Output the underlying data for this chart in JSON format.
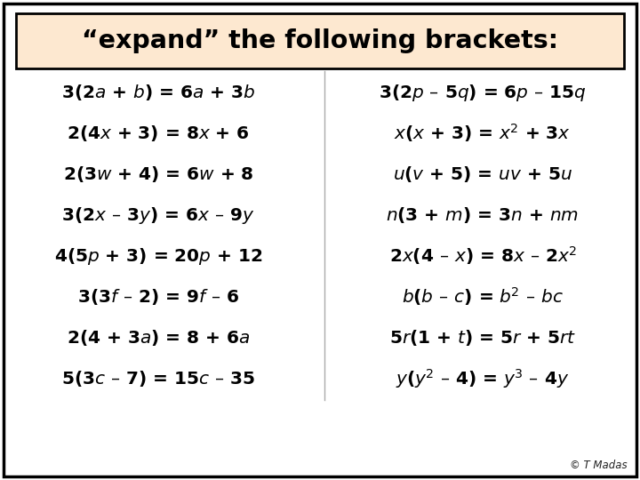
{
  "title": "“expand” the following brackets:",
  "title_bg": "#fde8d0",
  "bg_color": "#ffffff",
  "border_color": "#000000",
  "text_color": "#000000",
  "footer": "© T Madas",
  "left_eqs": [
    "3(2$\\it{a}$ + $\\it{b}$) = 6$\\it{a}$ + 3$\\it{b}$",
    "2(4$\\it{x}$ + 3) = 8$\\it{x}$ + 6",
    "2(3$\\it{w}$ + 4) = 6$\\it{w}$ + 8",
    "3(2$\\it{x}$ – 3$\\it{y}$) = 6$\\it{x}$ – 9$\\it{y}$",
    "4(5$\\it{p}$ + 3) = 20$\\it{p}$ + 12",
    "3(3$\\it{f}$ – 2) = 9$\\it{f}$ – 6",
    "2(4 + 3$\\it{a}$) = 8 + 6$\\it{a}$",
    "5(3$\\it{c}$ – 7) = 15$\\it{c}$ – 35"
  ],
  "right_eqs": [
    "3(2$\\it{p}$ – 5$\\it{q}$) = 6$\\it{p}$ – 15$\\it{q}$",
    "$\\it{x}$($\\it{x}$ + 3) = $\\it{x}$$^2$ + 3$\\it{x}$",
    "$\\it{u}$($\\it{v}$ + 5) = $\\it{uv}$ + 5$\\it{u}$",
    "$\\it{n}$(3 + $\\it{m}$) = 3$\\it{n}$ + $\\it{nm}$",
    "2$\\it{x}$(4 – $\\it{x}$) = 8$\\it{x}$ – 2$\\it{x}$$^2$",
    "$\\it{b}$($\\it{b}$ – $\\it{c}$) = $\\it{b}$$^2$ – $\\it{bc}$",
    "5$\\it{r}$(1 + $\\it{t}$) = 5$\\it{r}$ + 5$\\it{rt}$",
    "$\\it{y}$($\\it{y}$$^2$ – 4) = $\\it{y}$$^3$ – 4$\\it{y}$"
  ],
  "figw": 7.2,
  "figh": 5.4,
  "dpi": 100
}
